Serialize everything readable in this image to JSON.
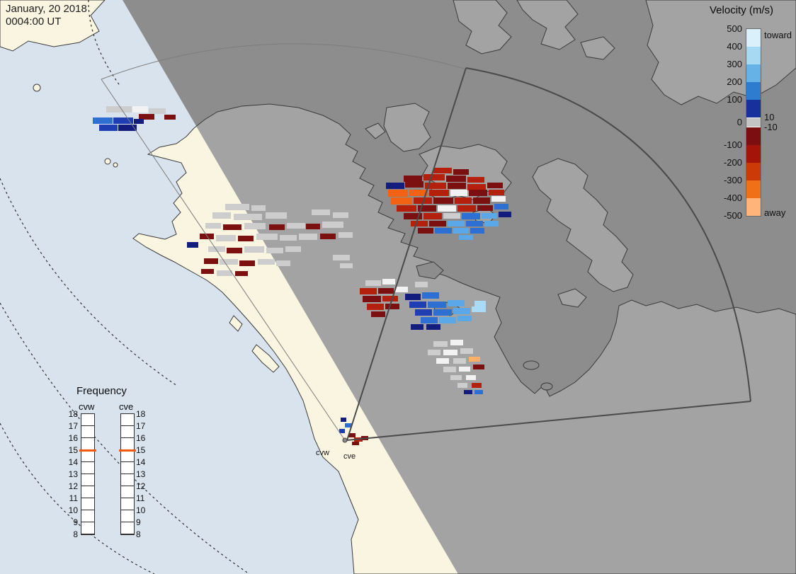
{
  "header": {
    "date": "January, 20 2018",
    "time": "0004:00 UT"
  },
  "velocity_legend": {
    "title": "Velocity (m/s)",
    "toward": "toward",
    "away": "away",
    "left_ticks": [
      "500",
      "400",
      "300",
      "200",
      "100",
      "0",
      "-100",
      "-200",
      "-300",
      "-400",
      "-500"
    ],
    "right_ticks": {
      "pos": "10",
      "neg": "-10"
    },
    "segments": [
      {
        "range": "400 to 500",
        "color": "#daf0fb",
        "h": 25
      },
      {
        "range": "300 to 400",
        "color": "#a8d9f3",
        "h": 25
      },
      {
        "range": "200 to 300",
        "color": "#66b2e7",
        "h": 25
      },
      {
        "range": "100 to 200",
        "color": "#2e7ccf",
        "h": 25
      },
      {
        "range": "10 to 100",
        "color": "#17309c",
        "h": 25
      },
      {
        "range": "-10 to 10",
        "color": "#c4c4c4",
        "h": 14,
        "band": true
      },
      {
        "range": "-100 to -10",
        "color": "#7c0e10",
        "h": 25
      },
      {
        "range": "-200 to -100",
        "color": "#a51408",
        "h": 25
      },
      {
        "range": "-300 to -200",
        "color": "#cc3a08",
        "h": 25
      },
      {
        "range": "-400 to -300",
        "color": "#f07018",
        "h": 25
      },
      {
        "range": "-500 to -400",
        "color": "#ffb579",
        "h": 25
      }
    ]
  },
  "frequency_legend": {
    "title": "Frequency",
    "columns": [
      "cvw",
      "cve"
    ],
    "ticks": [
      "18",
      "17",
      "16",
      "15",
      "14",
      "13",
      "12",
      "11",
      "10",
      "9",
      "8"
    ],
    "marker_tick": "15",
    "marker_color": "#f2590f"
  },
  "radar_site": {
    "labels": [
      "cvw",
      "cve"
    ]
  },
  "map_colors": {
    "day_ocean": "#d9e3ee",
    "day_land": "#f9f5e1",
    "night_ocean": "#8d8d8d",
    "night_land": "#a3a3a3",
    "coast": "#3a3a3a",
    "graticule": "#2e2e2e",
    "fan_light": "#7d7d7d",
    "fan_dark": "#4a4a4a"
  },
  "palette": {
    "nv": "#131d7e",
    "db": "#1e3eb2",
    "b": "#2e6fd4",
    "lb": "#5ba8e8",
    "pb": "#a9daf6",
    "dr": "#7c0f10",
    "r": "#b5200c",
    "o": "#f26212",
    "lo": "#ffb066",
    "lg": "#cdcdcd",
    "g": "#bdbdbd",
    "w": "#f2f2f2"
  },
  "cells": [
    [
      150,
      150,
      36,
      9,
      "lg"
    ],
    [
      187,
      150,
      22,
      9,
      "w"
    ],
    [
      210,
      153,
      24,
      8,
      "lg"
    ],
    [
      196,
      161,
      22,
      8,
      "dr"
    ],
    [
      232,
      162,
      16,
      7,
      "dr"
    ],
    [
      131,
      166,
      28,
      9,
      "b"
    ],
    [
      160,
      166,
      28,
      9,
      "db"
    ],
    [
      189,
      168,
      14,
      7,
      "nv"
    ],
    [
      140,
      176,
      26,
      9,
      "db"
    ],
    [
      167,
      176,
      26,
      9,
      "nv"
    ],
    [
      318,
      288,
      34,
      9,
      "lg"
    ],
    [
      355,
      290,
      20,
      8,
      "lg"
    ],
    [
      300,
      300,
      26,
      9,
      "lg"
    ],
    [
      330,
      302,
      40,
      9,
      "lg"
    ],
    [
      375,
      300,
      30,
      9,
      "lg"
    ],
    [
      440,
      296,
      26,
      8,
      "lg"
    ],
    [
      470,
      300,
      22,
      8,
      "lg"
    ],
    [
      290,
      315,
      22,
      8,
      "lg"
    ],
    [
      315,
      317,
      26,
      8,
      "dr"
    ],
    [
      345,
      315,
      30,
      9,
      "lg"
    ],
    [
      380,
      317,
      22,
      8,
      "dr"
    ],
    [
      405,
      315,
      26,
      8,
      "lg"
    ],
    [
      432,
      316,
      20,
      8,
      "dr"
    ],
    [
      455,
      313,
      30,
      9,
      "lg"
    ],
    [
      282,
      330,
      20,
      8,
      "dr"
    ],
    [
      305,
      332,
      28,
      9,
      "lg"
    ],
    [
      336,
      333,
      22,
      8,
      "dr"
    ],
    [
      362,
      330,
      30,
      9,
      "lg"
    ],
    [
      395,
      332,
      24,
      8,
      "lg"
    ],
    [
      422,
      330,
      26,
      9,
      "lg"
    ],
    [
      452,
      330,
      22,
      8,
      "dr"
    ],
    [
      478,
      328,
      20,
      8,
      "lg"
    ],
    [
      264,
      342,
      16,
      8,
      "nv"
    ],
    [
      294,
      348,
      24,
      8,
      "lg"
    ],
    [
      320,
      350,
      22,
      8,
      "dr"
    ],
    [
      345,
      348,
      28,
      9,
      "lg"
    ],
    [
      376,
      350,
      24,
      8,
      "lg"
    ],
    [
      403,
      348,
      22,
      8,
      "lg"
    ],
    [
      288,
      365,
      20,
      8,
      "dr"
    ],
    [
      310,
      366,
      26,
      8,
      "lg"
    ],
    [
      338,
      368,
      22,
      8,
      "dr"
    ],
    [
      364,
      366,
      24,
      8,
      "lg"
    ],
    [
      390,
      368,
      20,
      8,
      "lg"
    ],
    [
      470,
      360,
      24,
      8,
      "lg"
    ],
    [
      284,
      380,
      18,
      7,
      "dr"
    ],
    [
      306,
      382,
      22,
      8,
      "lg"
    ],
    [
      332,
      383,
      18,
      7,
      "dr"
    ],
    [
      480,
      372,
      18,
      7,
      "lg"
    ],
    [
      612,
      237,
      26,
      8,
      "r"
    ],
    [
      640,
      239,
      22,
      8,
      "dr"
    ],
    [
      570,
      248,
      26,
      9,
      "dr"
    ],
    [
      598,
      246,
      30,
      9,
      "r"
    ],
    [
      630,
      248,
      28,
      9,
      "dr"
    ],
    [
      660,
      250,
      24,
      8,
      "r"
    ],
    [
      545,
      258,
      26,
      9,
      "nv"
    ],
    [
      572,
      256,
      26,
      9,
      "dr"
    ],
    [
      600,
      258,
      30,
      9,
      "r"
    ],
    [
      632,
      258,
      26,
      9,
      "dr"
    ],
    [
      660,
      260,
      26,
      9,
      "r"
    ],
    [
      688,
      258,
      22,
      8,
      "dr"
    ],
    [
      548,
      268,
      28,
      10,
      "o"
    ],
    [
      578,
      268,
      26,
      9,
      "o"
    ],
    [
      606,
      268,
      28,
      9,
      "r"
    ],
    [
      636,
      268,
      24,
      9,
      "w"
    ],
    [
      662,
      268,
      26,
      9,
      "dr"
    ],
    [
      690,
      268,
      22,
      8,
      "r"
    ],
    [
      552,
      279,
      30,
      10,
      "o"
    ],
    [
      584,
      279,
      26,
      9,
      "r"
    ],
    [
      612,
      279,
      28,
      9,
      "dr"
    ],
    [
      642,
      279,
      24,
      9,
      "r"
    ],
    [
      668,
      279,
      24,
      9,
      "dr"
    ],
    [
      694,
      277,
      20,
      8,
      "w"
    ],
    [
      560,
      290,
      28,
      9,
      "r"
    ],
    [
      590,
      290,
      26,
      9,
      "dr"
    ],
    [
      618,
      290,
      26,
      9,
      "w"
    ],
    [
      646,
      290,
      26,
      9,
      "r"
    ],
    [
      674,
      290,
      22,
      8,
      "dr"
    ],
    [
      698,
      288,
      20,
      8,
      "b"
    ],
    [
      570,
      301,
      26,
      9,
      "dr"
    ],
    [
      598,
      301,
      26,
      9,
      "r"
    ],
    [
      626,
      301,
      24,
      8,
      "lg"
    ],
    [
      652,
      301,
      26,
      9,
      "b"
    ],
    [
      680,
      301,
      22,
      8,
      "lb"
    ],
    [
      704,
      299,
      18,
      8,
      "nv"
    ],
    [
      580,
      312,
      24,
      8,
      "r"
    ],
    [
      606,
      312,
      24,
      8,
      "dr"
    ],
    [
      632,
      312,
      24,
      8,
      "lb"
    ],
    [
      658,
      312,
      24,
      8,
      "b"
    ],
    [
      684,
      312,
      20,
      8,
      "lb"
    ],
    [
      590,
      322,
      22,
      8,
      "dr"
    ],
    [
      614,
      322,
      24,
      8,
      "b"
    ],
    [
      640,
      322,
      22,
      8,
      "lb"
    ],
    [
      664,
      322,
      20,
      8,
      "b"
    ],
    [
      648,
      332,
      20,
      7,
      "lb"
    ],
    [
      516,
      396,
      22,
      8,
      "lg"
    ],
    [
      540,
      394,
      18,
      8,
      "w"
    ],
    [
      508,
      407,
      24,
      9,
      "r"
    ],
    [
      534,
      407,
      22,
      8,
      "dr"
    ],
    [
      558,
      405,
      18,
      8,
      "w"
    ],
    [
      512,
      418,
      26,
      9,
      "dr"
    ],
    [
      540,
      418,
      22,
      8,
      "r"
    ],
    [
      518,
      429,
      24,
      9,
      "r"
    ],
    [
      544,
      429,
      20,
      8,
      "dr"
    ],
    [
      524,
      440,
      20,
      8,
      "dr"
    ],
    [
      586,
      398,
      18,
      8,
      "lg"
    ],
    [
      572,
      415,
      22,
      9,
      "nv"
    ],
    [
      596,
      413,
      24,
      9,
      "b"
    ],
    [
      578,
      426,
      24,
      9,
      "db"
    ],
    [
      604,
      426,
      26,
      9,
      "b"
    ],
    [
      632,
      424,
      24,
      9,
      "lb"
    ],
    [
      586,
      437,
      24,
      9,
      "db"
    ],
    [
      612,
      437,
      26,
      9,
      "b"
    ],
    [
      640,
      435,
      24,
      9,
      "lb"
    ],
    [
      666,
      433,
      20,
      8,
      "pb"
    ],
    [
      594,
      448,
      24,
      9,
      "b"
    ],
    [
      620,
      448,
      24,
      9,
      "lb"
    ],
    [
      646,
      446,
      20,
      8,
      "lb"
    ],
    [
      580,
      458,
      18,
      8,
      "nv"
    ],
    [
      602,
      458,
      20,
      8,
      "nv"
    ],
    [
      670,
      425,
      16,
      8,
      "pb"
    ],
    [
      612,
      482,
      20,
      8,
      "lg"
    ],
    [
      636,
      480,
      18,
      8,
      "w"
    ],
    [
      604,
      494,
      18,
      8,
      "lg"
    ],
    [
      626,
      494,
      20,
      8,
      "w"
    ],
    [
      650,
      492,
      18,
      8,
      "lg"
    ],
    [
      616,
      506,
      18,
      8,
      "w"
    ],
    [
      640,
      506,
      18,
      8,
      "lg"
    ],
    [
      662,
      504,
      16,
      7,
      "lo"
    ],
    [
      626,
      518,
      18,
      8,
      "lg"
    ],
    [
      648,
      518,
      16,
      7,
      "w"
    ],
    [
      668,
      515,
      16,
      7,
      "dr"
    ],
    [
      636,
      530,
      16,
      7,
      "lg"
    ],
    [
      658,
      530,
      14,
      7,
      "w"
    ],
    [
      646,
      541,
      14,
      7,
      "lg"
    ],
    [
      666,
      541,
      14,
      7,
      "r"
    ],
    [
      655,
      551,
      12,
      6,
      "nv"
    ],
    [
      670,
      551,
      12,
      6,
      "b"
    ],
    [
      481,
      590,
      8,
      6,
      "nv"
    ],
    [
      487,
      598,
      10,
      6,
      "b"
    ],
    [
      479,
      606,
      8,
      6,
      "db"
    ],
    [
      492,
      612,
      10,
      6,
      "dr"
    ],
    [
      500,
      618,
      12,
      6,
      "r"
    ],
    [
      510,
      616,
      10,
      6,
      "dr"
    ],
    [
      497,
      624,
      10,
      5,
      "dr"
    ]
  ]
}
